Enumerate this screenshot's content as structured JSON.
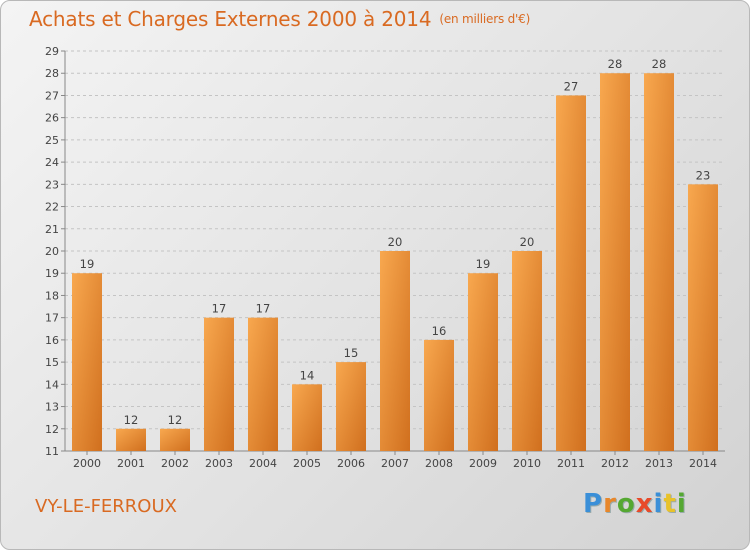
{
  "title": "Achats et Charges Externes 2000 à 2014",
  "unit_note": "(en milliers d'€)",
  "commune": "VY-LE-FERROUX",
  "logo_text": "Proxiti",
  "logo_colors": [
    "#3a8fd8",
    "#e8872a",
    "#55a832",
    "#e84a2a",
    "#3a8fd8",
    "#e8c22a",
    "#55a832"
  ],
  "colors": {
    "title": "#d96a22",
    "bar_light": "#f7a24a",
    "bar_dark": "#d2711f"
  },
  "chart_data": {
    "type": "bar",
    "categories": [
      "2000",
      "2001",
      "2002",
      "2003",
      "2004",
      "2005",
      "2006",
      "2007",
      "2008",
      "2009",
      "2010",
      "2011",
      "2012",
      "2013",
      "2014"
    ],
    "values": [
      19,
      12,
      12,
      17,
      17,
      14,
      15,
      20,
      16,
      19,
      20,
      27,
      28,
      28,
      23
    ],
    "title": "Achats et Charges Externes 2000 à 2014",
    "ylim": [
      11,
      29
    ],
    "yticks": [
      11,
      12,
      13,
      14,
      15,
      16,
      17,
      18,
      19,
      20,
      21,
      22,
      23,
      24,
      25,
      26,
      27,
      28,
      29
    ],
    "grid": true,
    "data_labels": true
  }
}
